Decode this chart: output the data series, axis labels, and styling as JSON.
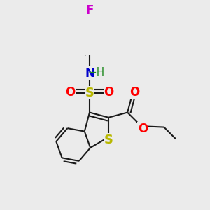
{
  "bg_color": "#ebebeb",
  "bond_color": "#1a1a1a",
  "lw": 1.5,
  "dbo": 0.018,
  "figsize": [
    3.0,
    3.0
  ],
  "dpi": 100,
  "xlim": [
    0.05,
    0.95
  ],
  "ylim": [
    0.05,
    0.95
  ],
  "atom_F": {
    "color": "#cc00cc",
    "fontsize": 12
  },
  "atom_N": {
    "color": "#0000cc",
    "fontsize": 12
  },
  "atom_H": {
    "color": "#228b22",
    "fontsize": 11
  },
  "atom_S": {
    "color": "#b8b800",
    "fontsize": 13
  },
  "atom_O": {
    "color": "#ff0000",
    "fontsize": 12
  }
}
